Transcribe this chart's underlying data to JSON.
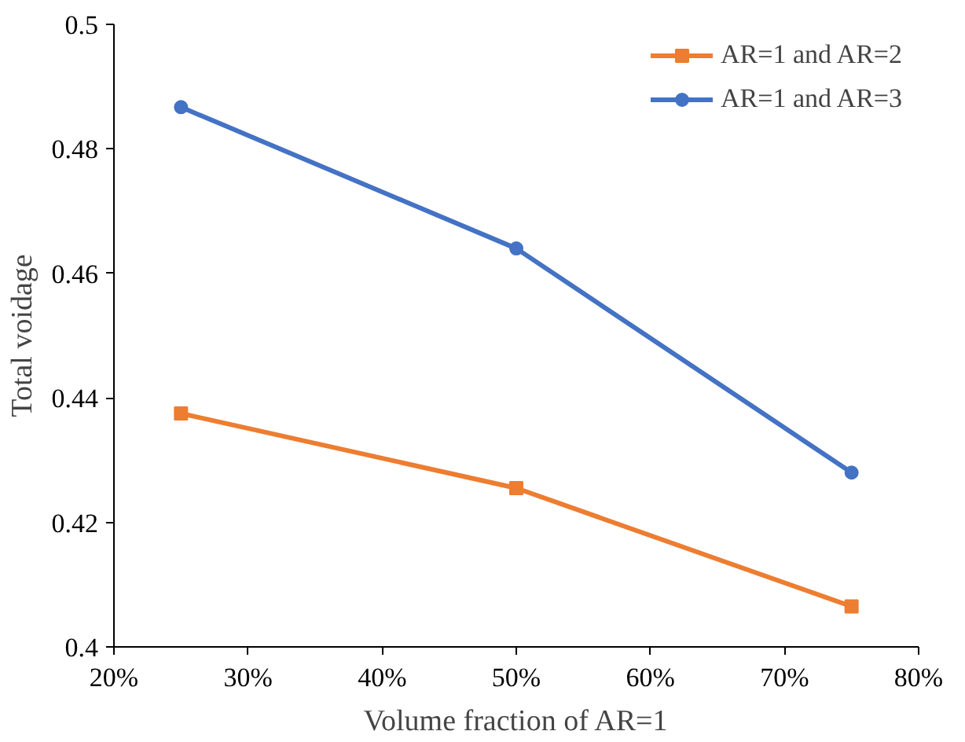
{
  "chart_data": {
    "type": "line",
    "xlabel": "Volume fraction of AR=1",
    "ylabel": "Total voidage",
    "x": [
      25,
      50,
      75
    ],
    "series": [
      {
        "name": "AR=1 and AR=2",
        "color": "#ed7d31",
        "values": [
          0.4375,
          0.4255,
          0.4065
        ],
        "marker": "square"
      },
      {
        "name": "AR=1 and AR=3",
        "color": "#4472c4",
        "values": [
          0.4867,
          0.464,
          0.428
        ],
        "marker": "circle"
      }
    ],
    "xlim": [
      20,
      80
    ],
    "xticks": [
      {
        "value": 20,
        "label": "20%"
      },
      {
        "value": 30,
        "label": "30%"
      },
      {
        "value": 40,
        "label": "40%"
      },
      {
        "value": 50,
        "label": "50%"
      },
      {
        "value": 60,
        "label": "60%"
      },
      {
        "value": 70,
        "label": "70%"
      },
      {
        "value": 80,
        "label": "80%"
      }
    ],
    "ylim": [
      0.4,
      0.5
    ],
    "yticks": [
      0.4,
      0.42,
      0.44,
      0.46,
      0.48,
      0.5
    ],
    "grid": false,
    "legend": "top right",
    "line_style": "solid"
  }
}
